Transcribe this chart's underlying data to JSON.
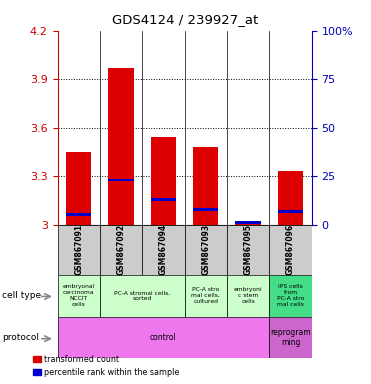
{
  "title": "GDS4124 / 239927_at",
  "samples": [
    "GSM867091",
    "GSM867092",
    "GSM867094",
    "GSM867093",
    "GSM867095",
    "GSM867096"
  ],
  "red_values": [
    3.45,
    3.97,
    3.54,
    3.48,
    3.02,
    3.33
  ],
  "blue_values_pct": [
    5,
    23,
    13,
    8,
    1,
    7
  ],
  "ylim_left": [
    3.0,
    4.2
  ],
  "ylim_right": [
    0,
    100
  ],
  "yticks_left": [
    3.0,
    3.3,
    3.6,
    3.9,
    4.2
  ],
  "yticks_right": [
    0,
    25,
    50,
    75,
    100
  ],
  "bar_color_red": "#dd0000",
  "bar_color_blue": "#0000cc",
  "bar_width": 0.6,
  "bg_color": "#ffffff",
  "left_axis_color": "#cc0000",
  "right_axis_color": "#0000bb",
  "ct_groups": [
    [
      0,
      0,
      "#ccffcc",
      "embryonal\ncarcinoma\nNCCIT\ncells"
    ],
    [
      1,
      2,
      "#ccffcc",
      "PC-A stromal cells,\nsorted"
    ],
    [
      3,
      3,
      "#ccffcc",
      "PC-A stro\nmal cells,\ncultured"
    ],
    [
      4,
      4,
      "#ccffcc",
      "embryoni\nc stem\ncells"
    ],
    [
      5,
      5,
      "#44dd88",
      "iPS cells\nfrom\nPC-A stro\nmal cells"
    ]
  ],
  "prot_groups": [
    [
      0,
      4,
      "#ee77ee",
      "control"
    ],
    [
      5,
      5,
      "#cc66cc",
      "reprogram\nming"
    ]
  ]
}
